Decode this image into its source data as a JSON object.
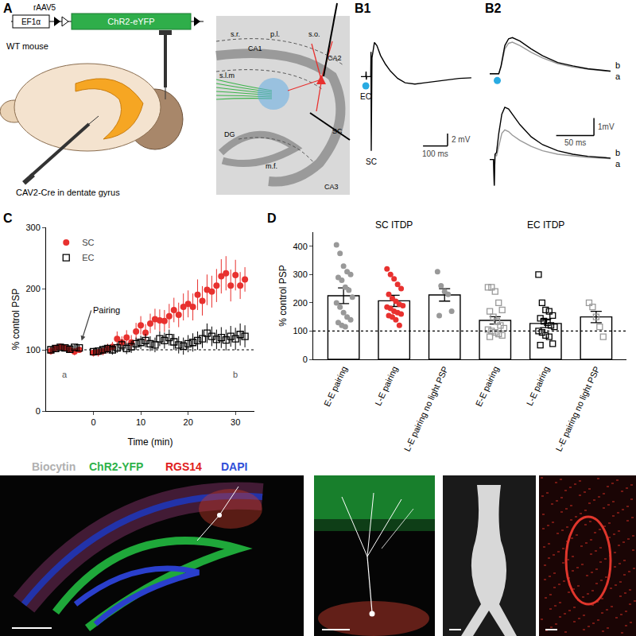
{
  "panels": [
    "A",
    "B1",
    "B2",
    "C",
    "D"
  ],
  "panel_A": {
    "vector": "rAAV5",
    "promoter": "EF1α",
    "construct": "ChR2-eYFP",
    "animal": "WT mouse",
    "injection": "CAV2-Cre in dentate gyrus",
    "regions": [
      "s.r.",
      "p.l.",
      "s.o.",
      "CA1",
      "CA2",
      "s.l.m",
      "DG",
      "m.f.",
      "CA3",
      "SC"
    ]
  },
  "panel_B1": {
    "type": "line",
    "tick_labels": false,
    "xlim": [
      0,
      460
    ],
    "ylim": [
      -16,
      8
    ],
    "series": [
      {
        "color": "#000000",
        "x": [
          0,
          20,
          21,
          22,
          23,
          40,
          41,
          42,
          43,
          45,
          55,
          65,
          80,
          100,
          120,
          150,
          180,
          220,
          260,
          300,
          350,
          400,
          450
        ],
        "values": [
          0,
          0,
          0.8,
          -0.5,
          0,
          0,
          4,
          -12,
          1,
          3,
          5.5,
          5,
          3.4,
          2.0,
          0.9,
          -0.3,
          -1.0,
          -1.2,
          -1.0,
          -0.8,
          -0.5,
          -0.3,
          -0.2
        ]
      }
    ],
    "stimuli": [
      {
        "label": "EC",
        "x": 20,
        "y": -1.5,
        "color": "#29abe2"
      },
      {
        "label": "SC",
        "x": 42,
        "y": -12
      }
    ],
    "scale_bar": {
      "x": 100,
      "y": 2,
      "x_label": "100 ms",
      "y_label": "2 mV"
    }
  },
  "panel_B2": [
    {
      "type": "line",
      "tick_labels": false,
      "xlim": [
        0,
        160
      ],
      "ylim": [
        -0.5,
        2
      ],
      "series": [
        {
          "name": "a",
          "color": "#999999",
          "x": [
            0,
            8,
            10,
            12,
            15,
            20,
            25,
            30,
            40,
            55,
            70,
            90,
            110,
            130,
            160
          ],
          "values": [
            0,
            0,
            0,
            0,
            0.3,
            1.1,
            1.35,
            1.4,
            1.25,
            0.95,
            0.7,
            0.45,
            0.3,
            0.2,
            0.1
          ]
        },
        {
          "name": "b",
          "color": "#000000",
          "x": [
            0,
            8,
            10,
            12,
            15,
            20,
            25,
            30,
            40,
            55,
            70,
            90,
            110,
            130,
            160
          ],
          "values": [
            0,
            0,
            0,
            0,
            0.35,
            1.25,
            1.55,
            1.6,
            1.45,
            1.1,
            0.8,
            0.5,
            0.35,
            0.22,
            0.12
          ]
        }
      ],
      "light": {
        "x": 10,
        "y": -0.3,
        "color": "#29abe2"
      }
    },
    {
      "type": "line",
      "tick_labels": false,
      "xlim": [
        0,
        160
      ],
      "ylim": [
        -1.8,
        3.5
      ],
      "series": [
        {
          "name": "a",
          "color": "#999999",
          "x": [
            0,
            5,
            6,
            7,
            9,
            12,
            16,
            20,
            25,
            30,
            40,
            55,
            70,
            90,
            110,
            130,
            160
          ],
          "values": [
            0,
            0,
            -1.5,
            0.3,
            0.2,
            0.8,
            1.5,
            1.7,
            1.6,
            1.4,
            1.1,
            0.75,
            0.5,
            0.3,
            0.2,
            0.12,
            0.05
          ]
        },
        {
          "name": "b",
          "color": "#000000",
          "x": [
            0,
            5,
            6,
            7,
            9,
            12,
            16,
            20,
            25,
            30,
            40,
            55,
            70,
            90,
            110,
            130,
            160
          ],
          "values": [
            0,
            0,
            -1.5,
            0.3,
            0.4,
            1.5,
            2.6,
            3.0,
            2.9,
            2.6,
            2.0,
            1.3,
            0.85,
            0.5,
            0.3,
            0.18,
            0.08
          ]
        }
      ],
      "scale_bar": {
        "x": 50,
        "y": 1,
        "x_label": "50 ms",
        "y_label": "1mV"
      }
    }
  ],
  "chart_data": [
    {
      "type": "scatter",
      "xlabel": "Time (min)",
      "ylabel": "% control PSP",
      "xlim": [
        -10,
        34
      ],
      "xticks": [
        0,
        10,
        20,
        30
      ],
      "ylim": [
        0,
        300
      ],
      "yticks": [
        0,
        100,
        200,
        300
      ],
      "grid": false,
      "legend": "upper left",
      "reference_line": 100,
      "series": [
        {
          "name": "SC",
          "color": "#e8312f",
          "marker": "circle",
          "x": [
            -9,
            -8,
            -7,
            -6,
            -5,
            -4,
            -3,
            0,
            1,
            2,
            3,
            4,
            5,
            6,
            7,
            8,
            9,
            10,
            11,
            12,
            13,
            14,
            15,
            16,
            17,
            18,
            19,
            20,
            21,
            22,
            23,
            24,
            25,
            26,
            27,
            28,
            29,
            30,
            31,
            32
          ],
          "values": [
            98,
            103,
            105,
            103,
            100,
            97,
            100,
            95,
            96,
            98,
            102,
            105,
            118,
            112,
            120,
            112,
            130,
            140,
            128,
            143,
            150,
            148,
            147,
            155,
            165,
            157,
            170,
            175,
            170,
            190,
            180,
            198,
            195,
            205,
            220,
            225,
            205,
            222,
            205,
            215
          ],
          "errors": [
            6,
            5,
            5,
            5,
            5,
            6,
            5,
            6,
            7,
            7,
            8,
            8,
            12,
            10,
            12,
            12,
            14,
            15,
            14,
            16,
            17,
            18,
            18,
            20,
            20,
            20,
            22,
            22,
            22,
            25,
            24,
            25,
            26,
            27,
            28,
            28,
            26,
            25,
            22,
            20
          ]
        },
        {
          "name": "EC",
          "color": "#000000",
          "marker": "square-open",
          "x": [
            -9,
            -8,
            -7,
            -6,
            -5,
            -4,
            -3,
            0,
            1,
            2,
            3,
            4,
            5,
            6,
            7,
            8,
            9,
            10,
            11,
            12,
            13,
            14,
            15,
            16,
            17,
            18,
            19,
            20,
            21,
            22,
            23,
            24,
            25,
            26,
            27,
            28,
            29,
            30,
            31,
            32
          ],
          "values": [
            100,
            102,
            104,
            103,
            101,
            104,
            103,
            97,
            98,
            100,
            102,
            100,
            103,
            108,
            102,
            105,
            110,
            112,
            115,
            110,
            108,
            118,
            115,
            120,
            113,
            108,
            106,
            110,
            112,
            115,
            118,
            127,
            122,
            117,
            120,
            116,
            122,
            118,
            125,
            122
          ],
          "errors": [
            5,
            5,
            5,
            5,
            5,
            5,
            5,
            6,
            6,
            7,
            7,
            8,
            8,
            9,
            9,
            10,
            10,
            11,
            11,
            12,
            12,
            12,
            13,
            13,
            13,
            14,
            14,
            14,
            15,
            15,
            15,
            16,
            16,
            16,
            17,
            17,
            17,
            18,
            18,
            18
          ]
        }
      ],
      "pairing": {
        "text": "Pairing",
        "x": -2.5,
        "y": 115
      },
      "annotations": [
        {
          "text": "a",
          "x": -6,
          "y": 60
        },
        {
          "text": "b",
          "x": 30,
          "y": 60
        }
      ]
    },
    {
      "type": "bar",
      "ylabel": "% control PSP",
      "categories": [
        "E-E pairing",
        "L-E pairing",
        "L-E pairing no light PSP",
        "E-E pairing",
        "L-E pairing",
        "L-E pairing no light PSP"
      ],
      "values": [
        225,
        207,
        228,
        138,
        127,
        150
      ],
      "errors": [
        28,
        20,
        22,
        13,
        15,
        20
      ],
      "color": "#ffffff",
      "ylim": [
        0,
        450
      ],
      "yticks": [
        0,
        100,
        200,
        300,
        400
      ],
      "grid": false,
      "reference_line": 100,
      "groups": [
        {
          "label": "SC ITDP",
          "members": [
            0,
            1,
            2
          ]
        },
        {
          "label": "EC ITDP",
          "members": [
            3,
            4,
            5
          ]
        }
      ],
      "points": [
        {
          "color": "#999999",
          "marker": "circle",
          "values": [
            405,
            375,
            330,
            310,
            300,
            290,
            280,
            255,
            245,
            220,
            200,
            185,
            165,
            150,
            140,
            130,
            120,
            115
          ]
        },
        {
          "color": "#e8312f",
          "marker": "circle",
          "values": [
            320,
            300,
            285,
            265,
            250,
            230,
            215,
            205,
            195,
            190,
            185,
            180,
            170,
            165,
            160,
            155,
            150,
            140,
            120
          ]
        },
        {
          "color": "#999999",
          "marker": "circle",
          "values": [
            310,
            260,
            240,
            230,
            170,
            155
          ]
        },
        {
          "color": "#999999",
          "marker": "square-open",
          "values": [
            255,
            255,
            240,
            200,
            175,
            170,
            150,
            135,
            120,
            110,
            105,
            100,
            95,
            90,
            85,
            80
          ]
        },
        {
          "color": "#000000",
          "marker": "square-open",
          "values": [
            300,
            200,
            175,
            170,
            155,
            145,
            135,
            130,
            120,
            115,
            100,
            95,
            85,
            80,
            55,
            50
          ]
        },
        {
          "color": "#999999",
          "marker": "square-open",
          "values": [
            200,
            185,
            150,
            115,
            80
          ]
        }
      ]
    }
  ],
  "images": {
    "labels": [
      {
        "text": "Biocytin",
        "color": "#b0b0b0"
      },
      {
        "text": "ChR2-YFP",
        "color": "#2fb34a"
      },
      {
        "text": "RGS14",
        "color": "#e02020"
      },
      {
        "text": "DAPI",
        "color": "#2f4fd8"
      }
    ]
  }
}
